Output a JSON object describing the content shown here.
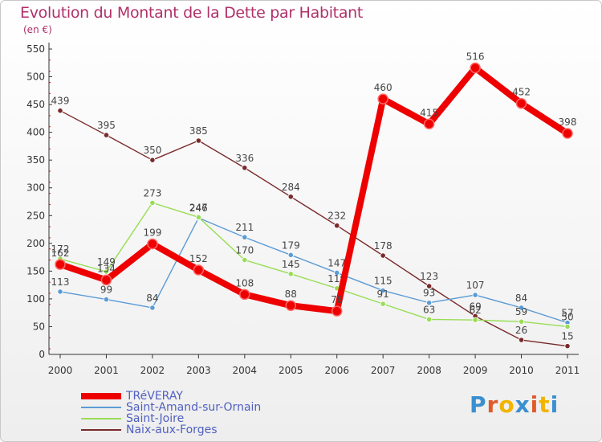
{
  "title": "Evolution du Montant de la Dette par Habitant",
  "subtitle": "(en €)",
  "logo": "Proxiti",
  "chart_data": {
    "type": "line",
    "x": [
      "2000",
      "2001",
      "2002",
      "2003",
      "2004",
      "2005",
      "2006",
      "2007",
      "2008",
      "2009",
      "2010",
      "2011"
    ],
    "ylim": [
      0,
      550
    ],
    "yticks": [
      0,
      50,
      100,
      150,
      200,
      250,
      300,
      350,
      400,
      450,
      500,
      550
    ],
    "grid": false,
    "legend_position": "bottom-left",
    "series": [
      {
        "name": "TRéVERAY",
        "color": "#ee0000",
        "values": [
          162,
          134,
          199,
          152,
          108,
          88,
          78,
          460,
          415,
          516,
          452,
          398
        ]
      },
      {
        "name": "Saint-Amand-sur-Ornain",
        "color": "#5b9bd5",
        "values": [
          113,
          99,
          84,
          246,
          211,
          179,
          147,
          115,
          93,
          107,
          84,
          57
        ]
      },
      {
        "name": "Saint-Joire",
        "color": "#99dd55",
        "values": [
          172,
          149,
          273,
          247,
          170,
          145,
          119,
          91,
          63,
          62,
          59,
          50
        ]
      },
      {
        "name": "Naix-aux-Forges",
        "color": "#7a2a2a",
        "values": [
          439,
          395,
          350,
          385,
          336,
          284,
          232,
          178,
          123,
          69,
          26,
          15
        ]
      }
    ]
  }
}
